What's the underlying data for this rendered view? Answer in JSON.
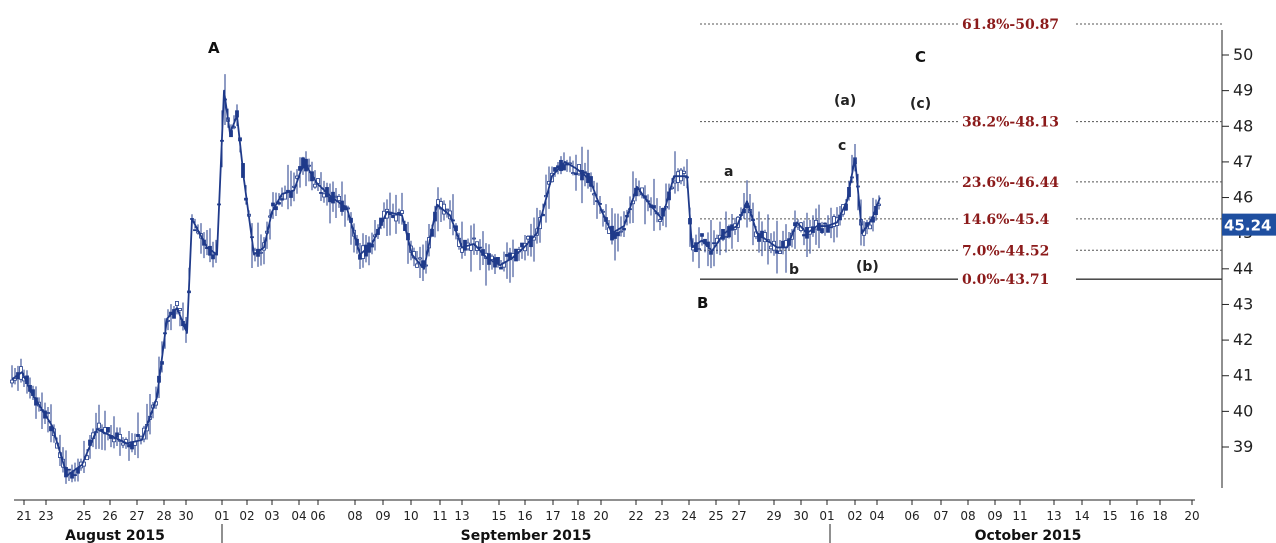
{
  "chart_data": {
    "type": "candlestick",
    "y_axis": {
      "min": 37.7,
      "max": 51.0,
      "side": "right",
      "ticks": [
        "39",
        "40",
        "41",
        "42",
        "43",
        "44",
        "45",
        "46",
        "47",
        "48",
        "49",
        "50"
      ]
    },
    "x_axis": {
      "day_labels": [
        "21",
        "23",
        "25",
        "26",
        "27",
        "28",
        "30",
        "01",
        "02",
        "03",
        "04",
        "06",
        "08",
        "09",
        "10",
        "11",
        "13",
        "15",
        "16",
        "17",
        "18",
        "20",
        "22",
        "23",
        "24",
        "25",
        "27",
        "29",
        "30",
        "01",
        "02",
        "04",
        "06",
        "07",
        "08",
        "09",
        "11",
        "13",
        "14",
        "15",
        "16",
        "18",
        "20"
      ],
      "months": [
        "August 2015",
        "September 2015",
        "October 2015"
      ]
    },
    "price_path": [
      [
        0,
        40.9
      ],
      [
        10,
        41.1
      ],
      [
        20,
        40.5
      ],
      [
        40,
        39.6
      ],
      [
        55,
        38.2
      ],
      [
        70,
        38.5
      ],
      [
        85,
        39.5
      ],
      [
        100,
        39.3
      ],
      [
        115,
        39.1
      ],
      [
        130,
        39.2
      ],
      [
        145,
        40.4
      ],
      [
        155,
        42.6
      ],
      [
        165,
        42.9
      ],
      [
        175,
        42.2
      ],
      [
        180,
        45.4
      ],
      [
        195,
        44.6
      ],
      [
        205,
        44.4
      ],
      [
        212,
        49.0
      ],
      [
        218,
        47.8
      ],
      [
        225,
        48.3
      ],
      [
        232,
        46.5
      ],
      [
        242,
        44.4
      ],
      [
        252,
        44.6
      ],
      [
        260,
        45.6
      ],
      [
        270,
        46.1
      ],
      [
        282,
        46.2
      ],
      [
        292,
        47.0
      ],
      [
        305,
        46.4
      ],
      [
        320,
        46.0
      ],
      [
        335,
        45.7
      ],
      [
        348,
        44.4
      ],
      [
        360,
        44.7
      ],
      [
        375,
        45.6
      ],
      [
        390,
        45.5
      ],
      [
        400,
        44.4
      ],
      [
        412,
        44.0
      ],
      [
        425,
        45.8
      ],
      [
        438,
        45.5
      ],
      [
        450,
        44.6
      ],
      [
        462,
        44.7
      ],
      [
        475,
        44.3
      ],
      [
        488,
        44.1
      ],
      [
        500,
        44.3
      ],
      [
        512,
        44.6
      ],
      [
        525,
        45.0
      ],
      [
        540,
        46.6
      ],
      [
        553,
        47.0
      ],
      [
        565,
        46.8
      ],
      [
        578,
        46.5
      ],
      [
        590,
        45.6
      ],
      [
        600,
        45.0
      ],
      [
        612,
        45.2
      ],
      [
        625,
        46.3
      ],
      [
        638,
        45.8
      ],
      [
        650,
        45.4
      ],
      [
        662,
        46.6
      ],
      [
        675,
        46.6
      ],
      [
        680,
        44.6
      ],
      [
        690,
        44.8
      ],
      [
        700,
        44.5
      ],
      [
        712,
        45.0
      ],
      [
        725,
        45.2
      ],
      [
        735,
        45.9
      ],
      [
        745,
        45.0
      ],
      [
        755,
        44.8
      ],
      [
        765,
        44.6
      ],
      [
        775,
        44.6
      ],
      [
        785,
        45.3
      ],
      [
        795,
        45.0
      ],
      [
        805,
        45.2
      ],
      [
        815,
        45.2
      ],
      [
        825,
        45.3
      ],
      [
        835,
        45.9
      ],
      [
        843,
        47.1
      ],
      [
        850,
        45.0
      ],
      [
        860,
        45.4
      ],
      [
        868,
        46.0
      ]
    ],
    "fibonacci_levels": [
      {
        "label": "61.8%",
        "value": 50.87
      },
      {
        "label": "38.2%",
        "value": 48.13
      },
      {
        "label": "23.6%",
        "value": 46.44
      },
      {
        "label": "14.6%",
        "value": 45.4
      },
      {
        "label": "7.0%",
        "value": 44.52
      },
      {
        "label": "0.0%",
        "value": 43.71
      }
    ],
    "wave_labels": [
      "A",
      "B",
      "C",
      "(a)",
      "(c)",
      "a",
      "b",
      "(b)",
      "c"
    ],
    "last_price": "45.24",
    "colors": {
      "price": "#1f3a8a",
      "fib_text": "#8b1a1a",
      "last_price_bg": "#1f4fa0"
    }
  }
}
